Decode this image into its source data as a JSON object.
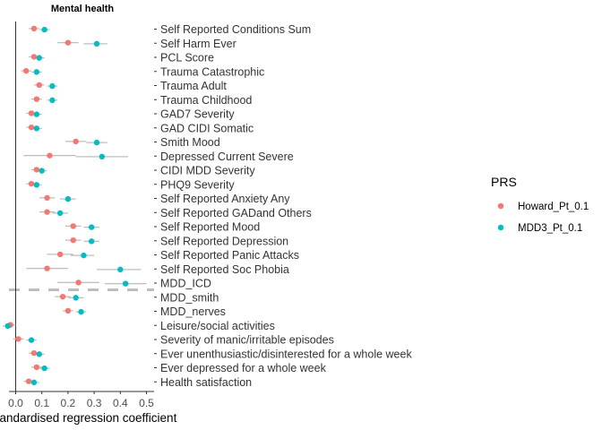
{
  "chart_data": {
    "type": "scatter",
    "title": "Mental health",
    "xlabel": "Standardised regression coefficient",
    "xlim": [
      -0.05,
      0.52
    ],
    "xticks": [
      "0.0",
      "0.1",
      "0.2",
      "0.3",
      "0.4",
      "0.5"
    ],
    "xtick_values": [
      0.0,
      0.1,
      0.2,
      0.3,
      0.4,
      0.5
    ],
    "categories": [
      "Self Reported Conditions Sum",
      "Self Harm Ever",
      "PCL Score",
      "Trauma Catastrophic",
      "Trauma Adult",
      "Trauma Childhood",
      "GAD7 Severity",
      "GAD CIDI Somatic",
      "Smith Mood",
      "Depressed Current Severe",
      "CIDI MDD Severity",
      "PHQ9 Severity",
      "Self Reported Anxiety Any",
      "Self Reported GADand Others",
      "Self Reported Mood",
      "Self Reported Depression",
      "Self Reported Panic Attacks",
      "Self Reported Soc Phobia",
      "MDD_ICD",
      "MDD_smith",
      "MDD_nerves",
      "Leisure/social activities",
      "Severity of manic/irritable episodes",
      "Ever unenthusiastic/disinterested for a whole week",
      "Ever depressed for a whole week",
      "Health satisfaction"
    ],
    "series": [
      {
        "name": "Howard_Pt_0.1",
        "color": "#F8766D",
        "values": [
          0.07,
          0.2,
          0.07,
          0.04,
          0.09,
          0.08,
          0.06,
          0.06,
          0.23,
          0.13,
          0.08,
          0.06,
          0.12,
          0.12,
          0.22,
          0.22,
          0.17,
          0.12,
          0.24,
          0.18,
          0.2,
          -0.02,
          0.01,
          0.07,
          0.08,
          0.05
        ],
        "ci_low": [
          0.05,
          0.16,
          0.05,
          0.02,
          0.07,
          0.06,
          0.04,
          0.04,
          0.19,
          0.03,
          0.06,
          0.04,
          0.09,
          0.09,
          0.19,
          0.19,
          0.12,
          0.04,
          0.16,
          0.15,
          0.18,
          -0.04,
          -0.01,
          0.05,
          0.06,
          0.03
        ],
        "ci_high": [
          0.09,
          0.24,
          0.09,
          0.06,
          0.11,
          0.1,
          0.08,
          0.08,
          0.27,
          0.23,
          0.1,
          0.08,
          0.15,
          0.15,
          0.25,
          0.25,
          0.22,
          0.2,
          0.32,
          0.21,
          0.22,
          0.0,
          0.03,
          0.09,
          0.1,
          0.07
        ]
      },
      {
        "name": "MDD3_Pt_0.1",
        "color": "#00BFC4",
        "values": [
          0.11,
          0.31,
          0.09,
          0.08,
          0.14,
          0.14,
          0.08,
          0.08,
          0.31,
          0.33,
          0.1,
          0.08,
          0.2,
          0.17,
          0.29,
          0.29,
          0.26,
          0.4,
          0.42,
          0.23,
          0.25,
          -0.03,
          0.06,
          0.09,
          0.11,
          0.07
        ],
        "ci_low": [
          0.09,
          0.26,
          0.07,
          0.06,
          0.12,
          0.12,
          0.06,
          0.06,
          0.27,
          0.23,
          0.08,
          0.06,
          0.17,
          0.14,
          0.26,
          0.26,
          0.21,
          0.31,
          0.34,
          0.2,
          0.23,
          -0.05,
          0.04,
          0.07,
          0.09,
          0.05
        ],
        "ci_high": [
          0.13,
          0.35,
          0.11,
          0.1,
          0.16,
          0.16,
          0.1,
          0.1,
          0.35,
          0.43,
          0.12,
          0.1,
          0.23,
          0.2,
          0.32,
          0.32,
          0.3,
          0.48,
          0.5,
          0.26,
          0.27,
          -0.01,
          0.08,
          0.11,
          0.13,
          0.09
        ]
      }
    ],
    "reference_line": {
      "value": 0.0,
      "style": "solid",
      "color": "#000000"
    },
    "highlight_row": {
      "category": "MDD_ICD",
      "style": "dashed",
      "color": "#bdbdbd"
    },
    "legend": {
      "title": "PRS",
      "position": "right"
    },
    "grid": false
  }
}
